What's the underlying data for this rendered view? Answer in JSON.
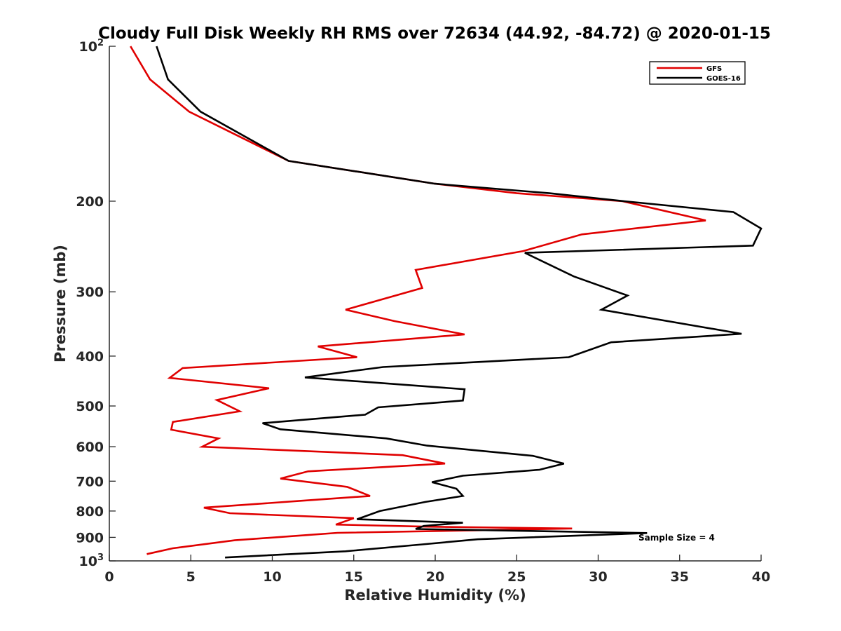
{
  "chart_data": {
    "type": "line",
    "title": "Cloudy Full Disk Weekly RH RMS over 72634 (44.92, -84.72) @ 2020-01-15",
    "xlabel": "Relative Humidity (%)",
    "ylabel": "Pressure (mb)",
    "xlim": [
      0,
      40
    ],
    "ylim": [
      100,
      1000
    ],
    "y_scale": "log",
    "y_reversed": true,
    "x_ticks": [
      0,
      5,
      10,
      15,
      20,
      25,
      30,
      35,
      40
    ],
    "y_ticks": [
      {
        "value": 100,
        "label": "10",
        "sup": "2"
      },
      {
        "value": 200,
        "label": "200"
      },
      {
        "value": 300,
        "label": "300"
      },
      {
        "value": 400,
        "label": "400"
      },
      {
        "value": 500,
        "label": "500"
      },
      {
        "value": 600,
        "label": "600"
      },
      {
        "value": 700,
        "label": "700"
      },
      {
        "value": 800,
        "label": "800"
      },
      {
        "value": 900,
        "label": "900"
      },
      {
        "value": 1000,
        "label": "10",
        "sup": "3"
      }
    ],
    "grid": false,
    "legend_position": "top-right",
    "annotation": "Sample Size = 4",
    "series": [
      {
        "name": "GFS",
        "color": "#e00000",
        "x": [
          1.3,
          2.5,
          4.9,
          11.0,
          20.0,
          25.0,
          31.5,
          36.6,
          29.0,
          25.4,
          18.8,
          19.2,
          14.5,
          17.5,
          21.8,
          12.8,
          15.2,
          4.5,
          3.7,
          9.8,
          6.6,
          8.0,
          3.9,
          3.8,
          6.7,
          5.7,
          18.0,
          20.6,
          12.2,
          10.5,
          14.6,
          16.0,
          11.6,
          5.8,
          7.4,
          15.0,
          13.9,
          19.5,
          28.4,
          14.0,
          7.7,
          3.9,
          2.3
        ],
        "y": [
          100,
          116,
          134,
          167,
          185,
          193,
          200,
          218,
          232,
          250,
          272,
          295,
          325,
          342,
          363,
          383,
          402,
          422,
          441,
          462,
          487,
          512,
          537,
          556,
          578,
          600,
          623,
          647,
          670,
          692,
          718,
          748,
          765,
          788,
          808,
          826,
          850,
          858,
          865,
          882,
          912,
          945,
          970
        ]
      },
      {
        "name": "GOES-16",
        "color": "#000000",
        "x": [
          2.9,
          3.6,
          5.6,
          11.0,
          20.0,
          27.0,
          31.6,
          38.3,
          40.0,
          39.5,
          25.5,
          28.5,
          31.8,
          30.2,
          38.8,
          30.8,
          28.2,
          16.8,
          12.0,
          21.8,
          21.7,
          16.5,
          15.7,
          9.4,
          10.5,
          17.0,
          19.5,
          26.0,
          27.9,
          26.4,
          21.7,
          19.8,
          21.3,
          21.7,
          19.4,
          16.6,
          15.2,
          21.7,
          19.3,
          18.8,
          33.0,
          22.6,
          19.2,
          14.5,
          7.1
        ],
        "y": [
          100,
          116,
          134,
          167,
          185,
          193,
          200,
          210,
          226,
          244,
          252,
          280,
          305,
          325,
          362,
          376,
          402,
          420,
          440,
          464,
          488,
          503,
          520,
          540,
          555,
          578,
          597,
          625,
          647,
          665,
          683,
          703,
          724,
          748,
          768,
          800,
          830,
          843,
          855,
          867,
          883,
          908,
          929,
          958,
          985
        ]
      }
    ]
  }
}
